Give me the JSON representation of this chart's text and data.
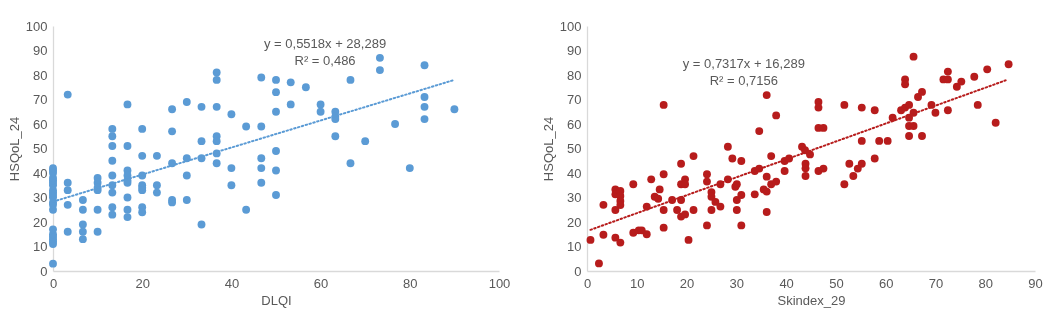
{
  "chart_data": [
    {
      "type": "scatter",
      "xlabel": "DLQI",
      "ylabel": "HSQoL_24",
      "xlim": [
        0,
        100
      ],
      "ylim": [
        0,
        100
      ],
      "xticks": [
        0,
        20,
        40,
        60,
        80,
        100
      ],
      "yticks": [
        0,
        10,
        20,
        30,
        40,
        50,
        60,
        70,
        80,
        90,
        100
      ],
      "annotations": [
        "y = 0,5518x + 28,289",
        "R² = 0,486"
      ],
      "series": [
        {
          "color": "#5b9bd5",
          "marker": "circle",
          "x": [
            0,
            0,
            0,
            0,
            0,
            0,
            0,
            0,
            0,
            0,
            0,
            0,
            0,
            0,
            0,
            0,
            0,
            0,
            0,
            0,
            0,
            3.3,
            3.3,
            3.3,
            3.3,
            3.3,
            6.7,
            6.7,
            6.7,
            6.7,
            6.7,
            10,
            10,
            10,
            10,
            10,
            10,
            13.3,
            13.3,
            13.3,
            13.3,
            13.3,
            13.3,
            13.3,
            13.3,
            13.3,
            16.7,
            16.7,
            16.7,
            16.7,
            16.7,
            16.7,
            16.7,
            16.7,
            16.7,
            20,
            20,
            20,
            20,
            20,
            20,
            20,
            20,
            23.3,
            23.3,
            23.3,
            26.7,
            26.7,
            26.7,
            26.7,
            26.7,
            30,
            30,
            30,
            30,
            33.3,
            33.3,
            33.3,
            33.3,
            36.7,
            36.7,
            36.7,
            36.7,
            36.7,
            36.7,
            36.7,
            40,
            40,
            40,
            43.3,
            43.3,
            46.7,
            46.7,
            46.7,
            46.7,
            46.7,
            50,
            50,
            50,
            50,
            50,
            50,
            53.3,
            53.3,
            56.7,
            60,
            60,
            63.3,
            63.3,
            63.3,
            63.3,
            66.7,
            66.7,
            70,
            73.3,
            73.3,
            76.7,
            80,
            83.3,
            83.3,
            83.3,
            83.3,
            90
          ],
          "values": [
            3,
            11,
            12,
            13,
            14,
            15,
            17,
            25,
            27,
            28,
            30,
            31,
            32,
            33,
            35,
            36,
            37,
            38,
            40,
            41,
            42,
            72,
            36,
            33,
            27,
            16,
            29,
            25,
            19,
            16,
            13,
            38,
            36,
            34,
            33,
            25,
            16,
            58,
            55,
            51,
            45,
            39,
            35,
            32,
            26,
            23,
            68,
            51,
            41,
            39,
            37,
            36,
            30,
            25,
            22,
            58,
            47,
            39,
            35,
            34,
            33,
            26,
            24,
            47,
            35,
            32,
            66,
            57,
            44,
            29,
            28,
            69,
            46,
            39,
            29,
            67,
            53,
            46,
            19,
            81,
            78,
            67,
            55,
            53,
            48,
            44,
            64,
            42,
            35,
            59,
            25,
            79,
            59,
            46,
            42,
            36,
            78,
            73,
            65,
            49,
            41,
            31,
            77,
            68,
            75,
            68,
            65,
            65,
            63,
            62,
            55,
            78,
            44,
            53,
            87,
            82,
            60,
            42,
            84,
            71,
            67,
            62,
            66
          ]
        },
        {
          "type": "line",
          "color": "#5b9bd5",
          "line_style": "dotted",
          "x": [
            0,
            90
          ],
          "values": [
            28.3,
            78
          ]
        }
      ]
    },
    {
      "type": "scatter",
      "xlabel": "Skindex_29",
      "ylabel": "HSQoL_24",
      "xlim": [
        0,
        90
      ],
      "ylim": [
        0,
        100
      ],
      "xticks": [
        0,
        10,
        20,
        30,
        40,
        50,
        60,
        70,
        80,
        90
      ],
      "yticks": [
        0,
        10,
        20,
        30,
        40,
        50,
        60,
        70,
        80,
        90,
        100
      ],
      "annotations": [
        "y = 0,7317x + 16,289",
        "R² = 0,7156"
      ],
      "series": [
        {
          "color": "#b71c1c",
          "marker": "circle",
          "x": [
            0.7,
            2.4,
            3.3,
            3.3,
            5.7,
            5.7,
            5.7,
            5.7,
            6.7,
            6.7,
            6.7,
            6.7,
            6.7,
            9.3,
            9.3,
            10.4,
            11,
            12,
            12,
            12.9,
            13.6,
            14.3,
            14.6,
            15.4,
            15.4,
            15.4,
            15.4,
            17.1,
            18.1,
            18.9,
            18.9,
            18.9,
            18.9,
            19.7,
            19.7,
            19.7,
            20.4,
            21.4,
            21.4,
            24.1,
            24.1,
            24.1,
            25,
            25,
            25,
            25.8,
            26.8,
            26.8,
            28.3,
            28.3,
            29.2,
            29.8,
            30.1,
            30.1,
            30.1,
            31,
            31,
            31,
            33.7,
            33.7,
            34.6,
            34.6,
            35.5,
            36.1,
            36.1,
            36.1,
            36.1,
            37,
            37,
            38,
            38,
            39.7,
            39.7,
            40.6,
            43.2,
            43.8,
            44.8,
            43.9,
            43.9,
            43.9,
            46.5,
            46.5,
            46.5,
            47.5,
            46.5,
            47.5,
            51.7,
            51.7,
            52.7,
            53.5,
            54.4,
            55.2,
            55.2,
            55.2,
            57.8,
            57.8,
            58.7,
            60.4,
            61.4,
            63.1,
            63.9,
            63.9,
            63.9,
            64.7,
            64.7,
            64.7,
            64.7,
            65.6,
            65.6,
            65.6,
            66.5,
            67.3,
            67.3,
            69.2,
            70,
            71.6,
            72.5,
            72.5,
            72.5,
            74.3,
            75.2,
            77.8,
            78.5,
            80.4,
            82.1,
            84.7
          ],
          "values": [
            12.7,
            3.1,
            27,
            14.8,
            33.3,
            31.3,
            24.9,
            13.6,
            32.7,
            30.6,
            28.6,
            26.9,
            11.6,
            35.4,
            15.6,
            16.6,
            16.6,
            15,
            26.3,
            37.4,
            30.3,
            29.5,
            33.3,
            67.8,
            39.5,
            24.9,
            17.7,
            29,
            24.9,
            43.8,
            35.4,
            29,
            22.2,
            37.4,
            35.4,
            23.1,
            12.7,
            46.9,
            24.9,
            39.5,
            36.5,
            18.6,
            32.2,
            30.3,
            24.9,
            28.2,
            35.4,
            26.3,
            50.7,
            37.4,
            45.9,
            34.4,
            35.4,
            29,
            24.9,
            44.9,
            31,
            18.6,
            31.3,
            40.8,
            57.1,
            41.8,
            33.3,
            71.8,
            38.5,
            32.4,
            24.1,
            46.9,
            35.4,
            63.5,
            36.5,
            44.9,
            40.8,
            45.9,
            50.7,
            49.3,
            47.6,
            43.8,
            41.9,
            38.8,
            69,
            66.7,
            58.4,
            58.4,
            40.8,
            41.8,
            67.8,
            35.4,
            43.8,
            38.8,
            41.8,
            43.8,
            66.7,
            53.1,
            65.6,
            45.9,
            53.1,
            53.1,
            62.6,
            65.6,
            66.7,
            78.2,
            76.2,
            67.8,
            62.6,
            59.2,
            55.1,
            87.5,
            64.6,
            59.2,
            71,
            73.1,
            55.1,
            67.8,
            64.6,
            78.2,
            78.2,
            81.4,
            65.6,
            75.2,
            77.3,
            79.3,
            67.8,
            82.3,
            60.5,
            84.4
          ]
        },
        {
          "type": "line",
          "color": "#b71c1c",
          "line_style": "dotted",
          "x": [
            0.7,
            84.1
          ],
          "values": [
            16.8,
            77.8
          ]
        }
      ]
    }
  ]
}
